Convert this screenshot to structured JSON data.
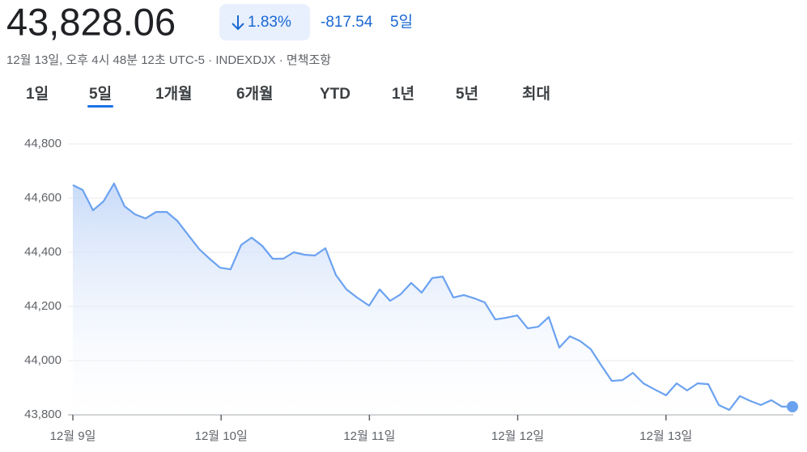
{
  "header": {
    "price": "43,828.06",
    "change_percent": "1.83%",
    "change": "-817.54",
    "period": "5일",
    "subtitle": "12월 13일, 오후 4시 48분 12초 UTC-5 · INDEXDJX · 면책조항"
  },
  "tabs": {
    "items": [
      "1일",
      "5일",
      "1개월",
      "6개월",
      "YTD",
      "1년",
      "5년",
      "최대"
    ],
    "selected": 1
  },
  "chart_data": {
    "type": "line",
    "color": "#6ba2f0",
    "area": true,
    "end_marker": true,
    "grid": true,
    "x": [
      0,
      0.066,
      0.136,
      0.207,
      0.278,
      0.349,
      0.42,
      0.491,
      0.562,
      0.633,
      0.704,
      0.775,
      0.852,
      0.922,
      0.993,
      1.064,
      1.135,
      1.206,
      1.277,
      1.348,
      1.419,
      1.49,
      1.561,
      1.632,
      1.703,
      1.774,
      1.845,
      1.916,
      1.998,
      2.069,
      2.14,
      2.211,
      2.282,
      2.353,
      2.424,
      2.495,
      2.566,
      2.637,
      2.707,
      2.778,
      2.849,
      2.92,
      2.997,
      3.068,
      3.139,
      3.21,
      3.281,
      3.352,
      3.422,
      3.493,
      3.564,
      3.635,
      3.706,
      3.777,
      3.848,
      3.919,
      4.001,
      4.072,
      4.143,
      4.214,
      4.285,
      4.356,
      4.427,
      4.498,
      4.569,
      4.64,
      4.711,
      4.782,
      4.853
    ],
    "values": [
      44648,
      44630,
      44555,
      44588,
      44654,
      44570,
      44540,
      44525,
      44549,
      44549,
      44516,
      44466,
      44412,
      44376,
      44343,
      44337,
      44427,
      44454,
      44424,
      44376,
      44376,
      44400,
      44391,
      44388,
      44415,
      44316,
      44263,
      44233,
      44203,
      44263,
      44221,
      44245,
      44287,
      44251,
      44305,
      44310,
      44233,
      44242,
      44230,
      44215,
      44152,
      44158,
      44167,
      44119,
      44125,
      44161,
      44048,
      44090,
      44072,
      44042,
      43982,
      43925,
      43928,
      43955,
      43916,
      43895,
      43872,
      43916,
      43890,
      43916,
      43913,
      43836,
      43818,
      43869,
      43851,
      43836,
      43854,
      43830,
      43830
    ],
    "xlim": [
      0,
      4.853
    ],
    "xticks": [
      {
        "value": 0,
        "label": "12월 9일"
      },
      {
        "value": 1,
        "label": "12월 10일"
      },
      {
        "value": 2,
        "label": "12월 11일"
      },
      {
        "value": 3,
        "label": "12월 12일"
      },
      {
        "value": 4,
        "label": "12월 13일"
      }
    ],
    "ylim": [
      43800,
      44800
    ],
    "yticks": [
      {
        "value": 43800,
        "label": "43,800"
      },
      {
        "value": 44000,
        "label": "44,000"
      },
      {
        "value": 44200,
        "label": "44,200"
      },
      {
        "value": 44400,
        "label": "44,400"
      },
      {
        "value": 44600,
        "label": "44,600"
      },
      {
        "value": 44800,
        "label": "44,800"
      }
    ]
  }
}
